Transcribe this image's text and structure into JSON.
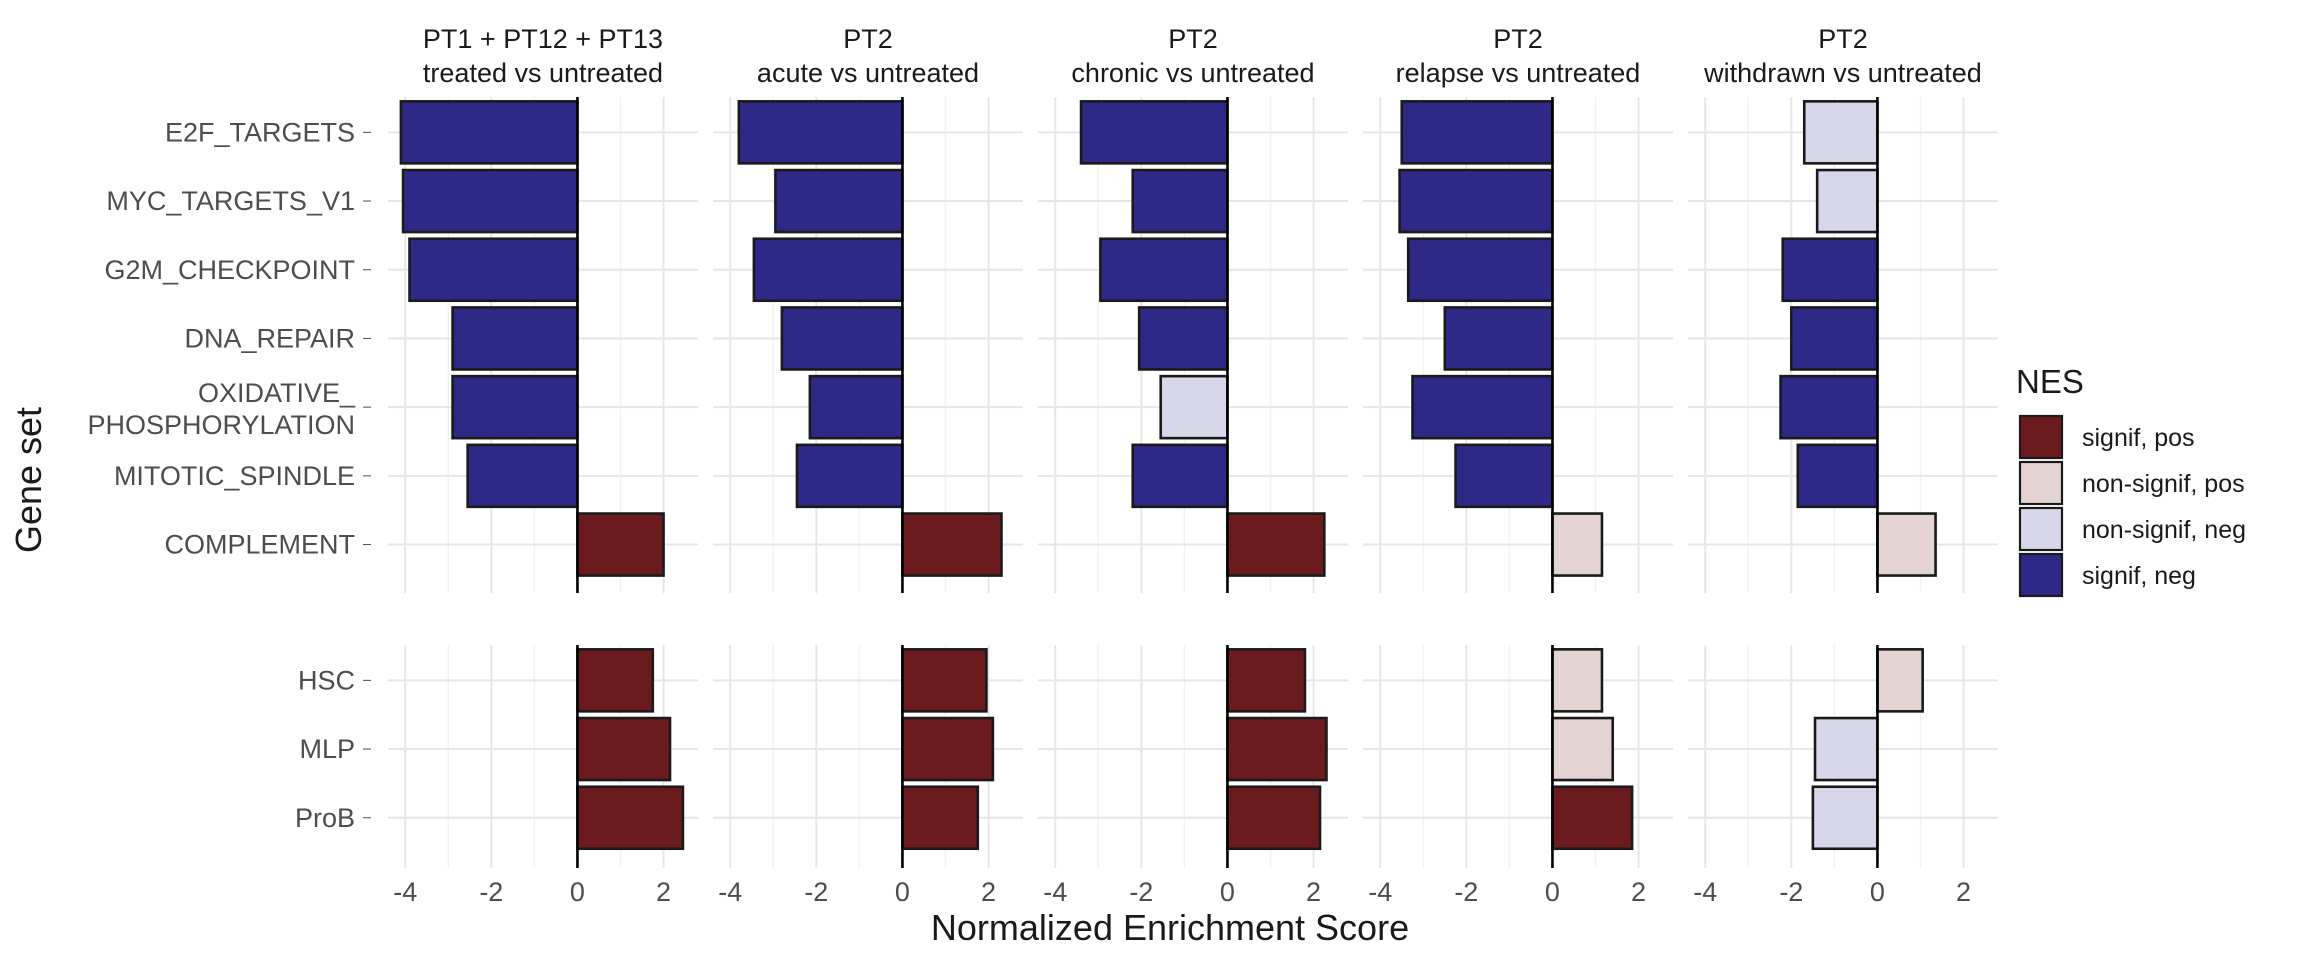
{
  "chart_data": {
    "type": "bar",
    "orientation": "horizontal",
    "xlabel": "Normalized Enrichment Score",
    "ylabel": "Gene set",
    "xlim": [
      -4.4,
      2.8
    ],
    "x_ticks": [
      "-4",
      "-2",
      "0",
      "2"
    ],
    "x_tick_values": [
      -4,
      -2,
      0,
      2
    ],
    "grid": true,
    "legend": {
      "title": "NES",
      "placement": "right",
      "entries": [
        {
          "key": "signif_pos",
          "label": "signif, pos",
          "color": "#6b1a1e"
        },
        {
          "key": "nonsignif_pos",
          "label": "non-signif, pos",
          "color": "#e3d3d3"
        },
        {
          "key": "nonsignif_neg",
          "label": "non-signif, neg",
          "color": "#d7d7e9"
        },
        {
          "key": "signif_neg",
          "label": "signif, neg",
          "color": "#2e2886"
        }
      ]
    },
    "column_panels": [
      {
        "line1": "PT1 + PT12 + PT13",
        "line2": "treated vs untreated"
      },
      {
        "line1": "PT2",
        "line2": "acute vs untreated"
      },
      {
        "line1": "PT2",
        "line2": "chronic vs untreated"
      },
      {
        "line1": "PT2",
        "line2": "relapse vs untreated"
      },
      {
        "line1": "PT2",
        "line2": "withdrawn vs untreated"
      }
    ],
    "row_panels": [
      {
        "categories": [
          {
            "lines": [
              "E2F_TARGETS"
            ]
          },
          {
            "lines": [
              "MYC_TARGETS_V1"
            ]
          },
          {
            "lines": [
              "G2M_CHECKPOINT"
            ]
          },
          {
            "lines": [
              "DNA_REPAIR"
            ]
          },
          {
            "lines": [
              "OXIDATIVE_",
              "PHOSPHORYLATION"
            ]
          },
          {
            "lines": [
              "MITOTIC_SPINDLE"
            ]
          },
          {
            "lines": [
              "COMPLEMENT"
            ]
          }
        ],
        "values": [
          [
            -4.1,
            -4.05,
            -3.9,
            -2.9,
            -2.9,
            -2.55,
            2.0
          ],
          [
            -3.8,
            -2.95,
            -3.45,
            -2.8,
            -2.15,
            -2.45,
            2.3
          ],
          [
            -3.4,
            -2.2,
            -2.95,
            -2.05,
            -1.55,
            -2.2,
            2.25
          ],
          [
            -3.5,
            -3.55,
            -3.35,
            -2.5,
            -3.25,
            -2.25,
            1.15
          ],
          [
            -1.7,
            -1.4,
            -2.2,
            -2.0,
            -2.25,
            -1.85,
            1.35
          ]
        ],
        "classes": [
          [
            "signif_neg",
            "signif_neg",
            "signif_neg",
            "signif_neg",
            "signif_neg",
            "signif_neg",
            "signif_pos"
          ],
          [
            "signif_neg",
            "signif_neg",
            "signif_neg",
            "signif_neg",
            "signif_neg",
            "signif_neg",
            "signif_pos"
          ],
          [
            "signif_neg",
            "signif_neg",
            "signif_neg",
            "signif_neg",
            "nonsignif_neg",
            "signif_neg",
            "signif_pos"
          ],
          [
            "signif_neg",
            "signif_neg",
            "signif_neg",
            "signif_neg",
            "signif_neg",
            "signif_neg",
            "nonsignif_pos"
          ],
          [
            "nonsignif_neg",
            "nonsignif_neg",
            "signif_neg",
            "signif_neg",
            "signif_neg",
            "signif_neg",
            "nonsignif_pos"
          ]
        ]
      },
      {
        "categories": [
          {
            "lines": [
              "HSC"
            ]
          },
          {
            "lines": [
              "MLP"
            ]
          },
          {
            "lines": [
              "ProB"
            ]
          }
        ],
        "values": [
          [
            1.75,
            2.15,
            2.45
          ],
          [
            1.95,
            2.1,
            1.75
          ],
          [
            1.8,
            2.3,
            2.15
          ],
          [
            1.15,
            1.4,
            1.85
          ],
          [
            1.05,
            -1.45,
            -1.5
          ]
        ],
        "classes": [
          [
            "signif_pos",
            "signif_pos",
            "signif_pos"
          ],
          [
            "signif_pos",
            "signif_pos",
            "signif_pos"
          ],
          [
            "signif_pos",
            "signif_pos",
            "signif_pos"
          ],
          [
            "nonsignif_pos",
            "nonsignif_pos",
            "signif_pos"
          ],
          [
            "nonsignif_pos",
            "nonsignif_neg",
            "nonsignif_neg"
          ]
        ]
      }
    ]
  }
}
